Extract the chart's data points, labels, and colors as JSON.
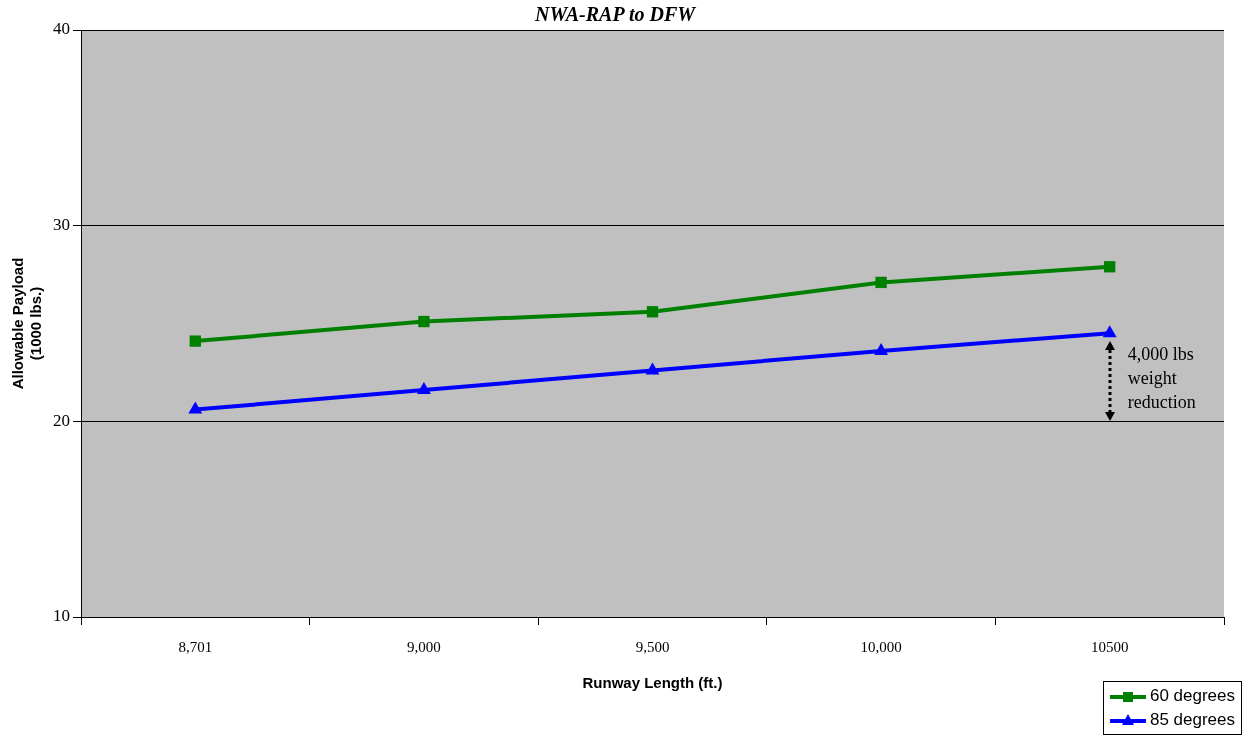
{
  "chart_data": {
    "type": "line",
    "title": "NWA-RAP to DFW",
    "xlabel": "Runway Length (ft.)",
    "ylabel": "Allowable Payload (1000 lbs.)",
    "categories": [
      "8,701",
      "9,000",
      "9,500",
      "10,000",
      "10500"
    ],
    "series": [
      {
        "name": "60 degrees",
        "color": "#008000",
        "marker": "square",
        "values": [
          24.1,
          25.1,
          25.6,
          27.1,
          27.9
        ]
      },
      {
        "name": "85 degrees",
        "color": "#0000ff",
        "marker": "triangle",
        "values": [
          20.6,
          21.6,
          22.6,
          23.6,
          24.5
        ]
      }
    ],
    "ylim": [
      10,
      40
    ],
    "yticks": [
      10,
      20,
      30,
      40
    ],
    "grid": "y",
    "legend": "bottom right",
    "line_style": "solid",
    "annotations": [
      {
        "text": "4,000 lbs weight reduction",
        "x": "10500",
        "y": 24.5
      }
    ]
  }
}
